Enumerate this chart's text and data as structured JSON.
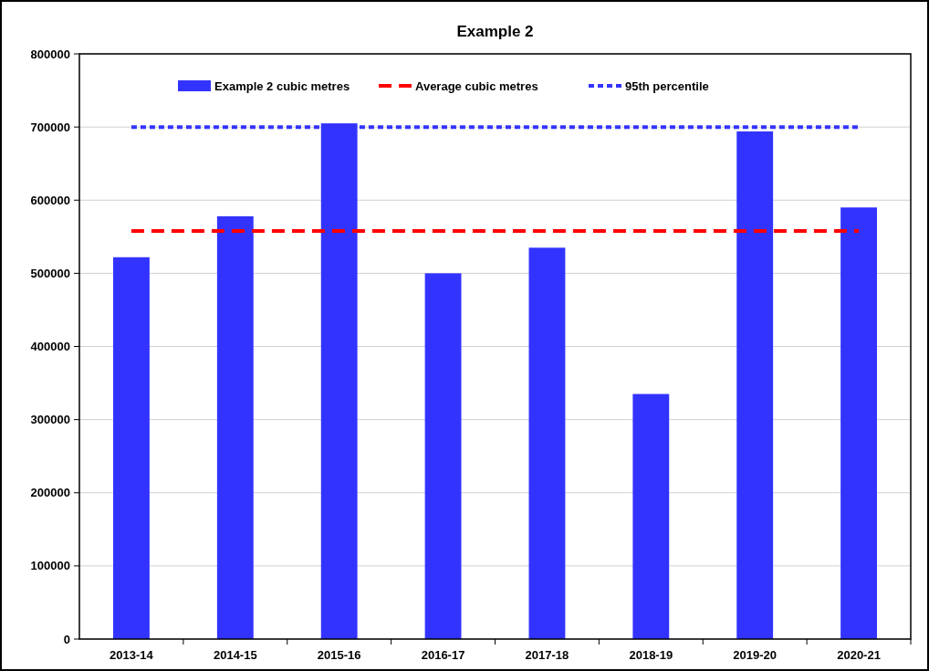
{
  "chart_data": {
    "type": "bar",
    "title": "Example 2",
    "categories": [
      "2013-14",
      "2014-15",
      "2015-16",
      "2016-17",
      "2017-18",
      "2018-19",
      "2019-20",
      "2020-21"
    ],
    "series": [
      {
        "name": "Example 2 cubic metres",
        "color": "#3333ff",
        "values": [
          522000,
          578000,
          705000,
          500000,
          535000,
          335000,
          694000,
          590000
        ]
      },
      {
        "name": "Average cubic metres",
        "type": "line",
        "line_style": "dashed",
        "color": "#ff0000",
        "values": [
          558000,
          558000,
          558000,
          558000,
          558000,
          558000,
          558000,
          558000
        ]
      },
      {
        "name": "95th percentile",
        "type": "line",
        "line_style": "dotted",
        "color": "#3333ff",
        "values": [
          700000,
          700000,
          700000,
          700000,
          700000,
          700000,
          700000,
          700000
        ]
      }
    ],
    "ylim": [
      0,
      800000
    ],
    "yticks": [
      0,
      100000,
      200000,
      300000,
      400000,
      500000,
      600000,
      700000,
      800000
    ],
    "grid": "y",
    "legend": "top"
  }
}
